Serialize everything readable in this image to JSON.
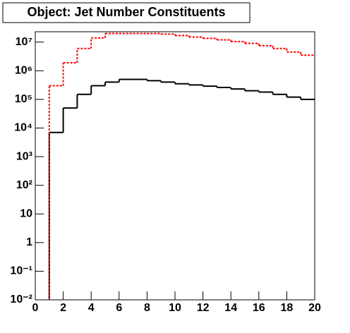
{
  "chart_data": {
    "type": "histogram",
    "title": "Object: Jet Number Constituents",
    "bins": [
      0,
      1,
      2,
      3,
      4,
      5,
      6,
      7,
      8,
      9,
      10,
      11,
      12,
      13,
      14,
      15,
      16,
      17,
      18,
      19,
      20
    ],
    "series": [
      {
        "color": "#000000",
        "style": "solid",
        "values": [
          null,
          7000,
          50000,
          150000,
          300000,
          400000,
          500000,
          500000,
          450000,
          400000,
          350000,
          320000,
          290000,
          260000,
          230000,
          200000,
          180000,
          150000,
          120000,
          100000
        ]
      },
      {
        "color": "#ff0000",
        "style": "dashed",
        "values": [
          null,
          300000,
          1900000,
          6000000,
          14000000,
          20000000,
          20000000,
          20000000,
          20000000,
          19000000,
          17000000,
          15000000,
          13500000,
          12000000,
          10500000,
          9000000,
          7500000,
          6000000,
          4500000,
          3500000
        ]
      }
    ],
    "xlim": [
      0,
      20
    ],
    "xticks": [
      0,
      2,
      4,
      6,
      8,
      10,
      12,
      14,
      16,
      18,
      20
    ],
    "ylim": [
      0.01,
      23000000
    ],
    "ylog": true,
    "yticks": [
      {
        "value": 0.01,
        "label": "10⁻²"
      },
      {
        "value": 0.1,
        "label": "10⁻¹"
      },
      1,
      10,
      {
        "value": 100,
        "label": "10²"
      },
      {
        "value": 1000,
        "label": "10³"
      },
      {
        "value": 10000,
        "label": "10⁴"
      },
      {
        "value": 100000,
        "label": "10⁵"
      },
      {
        "value": 1000000,
        "label": "10⁶"
      },
      {
        "value": 10000000,
        "label": "10⁷"
      }
    ]
  }
}
